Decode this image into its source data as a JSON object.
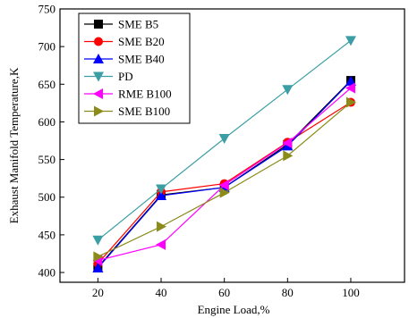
{
  "chart_data": {
    "type": "line",
    "xlabel": "Engine Load,%",
    "ylabel": "Exhaust Manifold Temperature,K",
    "x": [
      20,
      40,
      60,
      80,
      100
    ],
    "xticks": [
      "20",
      "40",
      "60",
      "80",
      "100"
    ],
    "yticks": [
      "400",
      "450",
      "500",
      "550",
      "600",
      "650",
      "700",
      "750"
    ],
    "xlim": [
      8,
      117
    ],
    "ylim": [
      387,
      750
    ],
    "grid": false,
    "legend_position": "top-left",
    "series": [
      {
        "name": "SME B5",
        "values": [
          407,
          503,
          513,
          570,
          655
        ],
        "color": "#000000",
        "marker": "square"
      },
      {
        "name": "SME B20",
        "values": [
          412,
          507,
          518,
          573,
          626
        ],
        "color": "#ff0000",
        "marker": "circle"
      },
      {
        "name": "SME B40",
        "values": [
          406,
          502,
          513,
          568,
          654
        ],
        "color": "#0000ff",
        "marker": "triangle-up"
      },
      {
        "name": "PD",
        "values": [
          443,
          511,
          578,
          643,
          708
        ],
        "color": "#3a9ea4",
        "marker": "triangle-down"
      },
      {
        "name": "RME B100",
        "values": [
          416,
          437,
          516,
          572,
          645
        ],
        "color": "#ff00ff",
        "marker": "triangle-left"
      },
      {
        "name": "SME B100",
        "values": [
          421,
          461,
          506,
          555,
          626
        ],
        "color": "#8b8b1a",
        "marker": "triangle-right"
      }
    ]
  }
}
